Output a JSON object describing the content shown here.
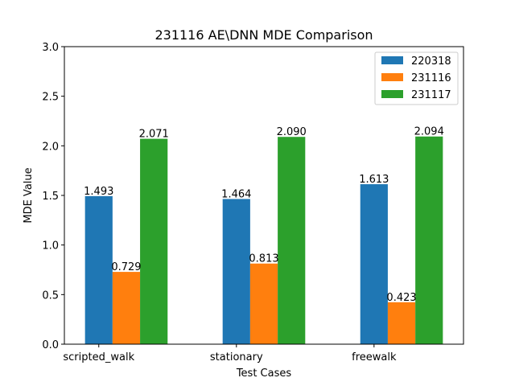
{
  "chart_data": {
    "type": "bar",
    "title": "231116 AE\\DNN MDE Comparison",
    "xlabel": "Test Cases",
    "ylabel": "MDE Value",
    "categories": [
      "scripted_walk",
      "stationary",
      "freewalk"
    ],
    "series": [
      {
        "name": "220318",
        "color": "#1f77b4",
        "values": [
          1.493,
          1.464,
          1.613
        ],
        "labels": [
          "1.493",
          "1.464",
          "1.613"
        ]
      },
      {
        "name": "231116",
        "color": "#ff7f0e",
        "values": [
          0.729,
          0.813,
          0.423
        ],
        "labels": [
          "0.729",
          "0.813",
          "0.423"
        ]
      },
      {
        "name": "231117",
        "color": "#2ca02c",
        "values": [
          2.071,
          2.09,
          2.094
        ],
        "labels": [
          "2.071",
          "2.090",
          "2.094"
        ]
      }
    ],
    "ylim": [
      0,
      3.0
    ],
    "yticks": [
      0.0,
      0.5,
      1.0,
      1.5,
      2.0,
      2.5,
      3.0
    ],
    "ytick_labels": [
      "0.0",
      "0.5",
      "1.0",
      "1.5",
      "2.0",
      "2.5",
      "3.0"
    ],
    "grid": false,
    "legend_position": "top-right"
  }
}
